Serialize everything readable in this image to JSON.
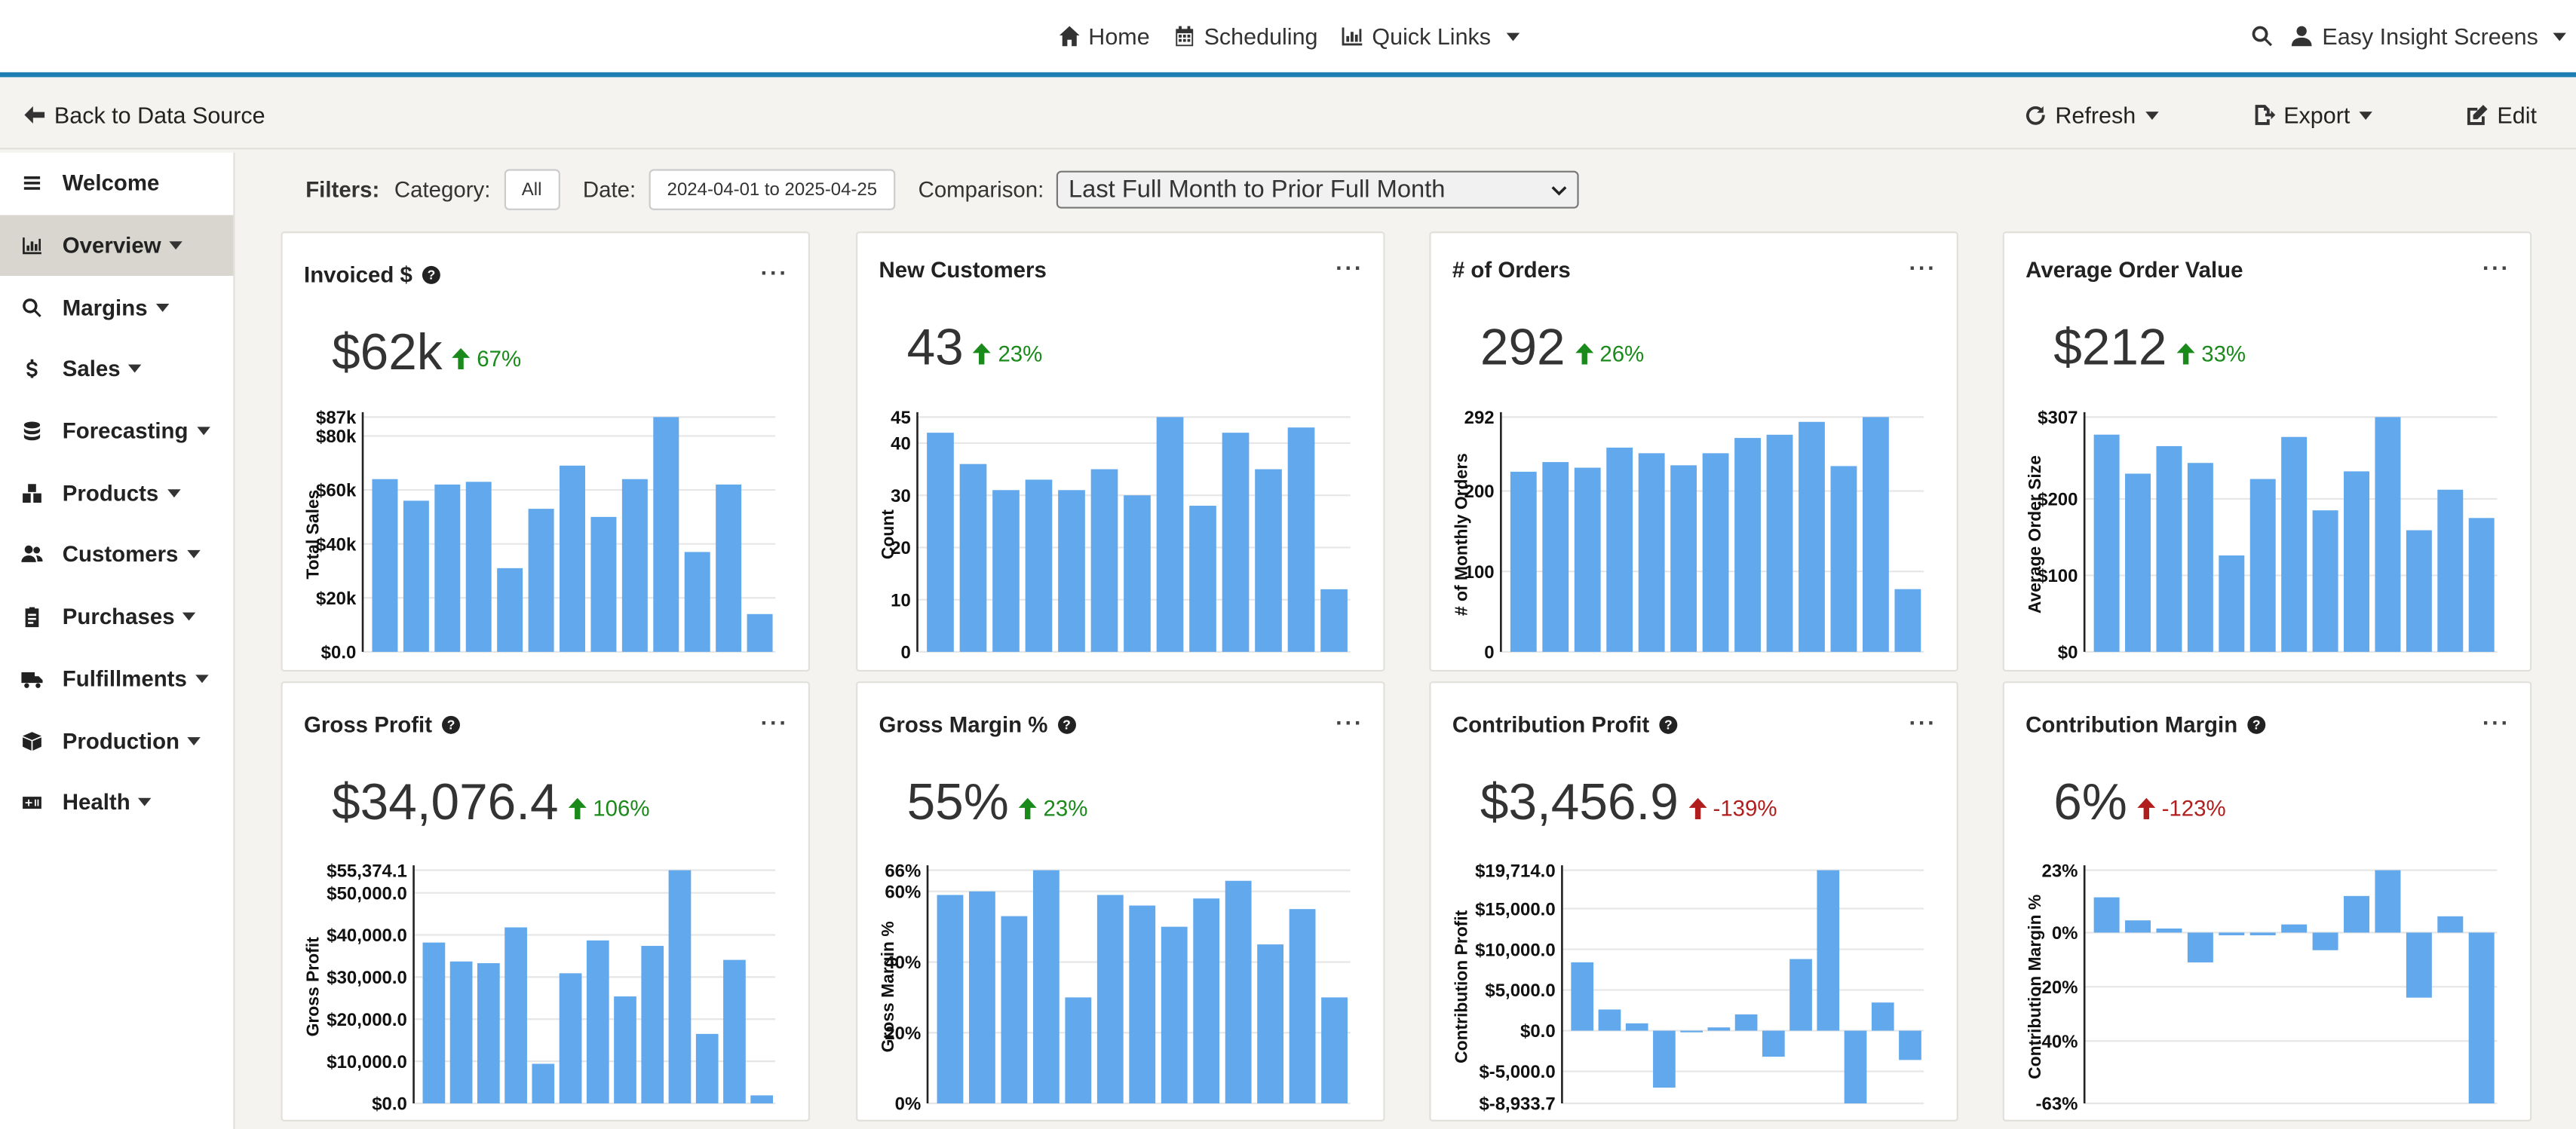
{
  "nav": {
    "home": "Home",
    "scheduling": "Scheduling",
    "quick_links": "Quick Links",
    "user": "Easy Insight Screens"
  },
  "actions": {
    "back": "Back to Data Source",
    "refresh": "Refresh",
    "export": "Export",
    "edit": "Edit"
  },
  "sidebar": [
    {
      "label": "Welcome",
      "icon": "bars-icon",
      "caret": false
    },
    {
      "label": "Overview",
      "icon": "chart-icon",
      "caret": true
    },
    {
      "label": "Margins",
      "icon": "search-icon",
      "caret": true
    },
    {
      "label": "Sales",
      "icon": "dollar-icon",
      "caret": true
    },
    {
      "label": "Forecasting",
      "icon": "database-icon",
      "caret": true
    },
    {
      "label": "Products",
      "icon": "boxes-icon",
      "caret": true
    },
    {
      "label": "Customers",
      "icon": "users-icon",
      "caret": true
    },
    {
      "label": "Purchases",
      "icon": "clipboard-icon",
      "caret": true
    },
    {
      "label": "Fulfillments",
      "icon": "truck-icon",
      "caret": true
    },
    {
      "label": "Production",
      "icon": "package-icon",
      "caret": true
    },
    {
      "label": "Health",
      "icon": "health-icon",
      "caret": true
    }
  ],
  "filters": {
    "label": "Filters:",
    "category_label": "Category:",
    "category_value": "All",
    "date_label": "Date:",
    "date_value": "2024-04-01 to 2025-04-25",
    "comparison_label": "Comparison:",
    "comparison_value": "Last Full Month to Prior Full Month"
  },
  "colors": {
    "bar": "#62a8ec",
    "up": "#1a8a1a",
    "down": "#b01e1e",
    "accent": "#1e7fb4"
  },
  "chart_data": [
    {
      "type": "bar",
      "title": "Invoiced $",
      "help": true,
      "kpi": "$62k",
      "change": "67%",
      "direction": "up",
      "ylabel": "Total Sales",
      "ylim": [
        0,
        87
      ],
      "values": [
        64,
        56,
        62,
        63,
        31,
        53,
        69,
        50,
        64,
        87,
        37,
        62,
        14
      ],
      "ticks": [
        {
          "v": 0,
          "t": "$0.0"
        },
        {
          "v": 20,
          "t": "$20k"
        },
        {
          "v": 40,
          "t": "$40k"
        },
        {
          "v": 60,
          "t": "$60k"
        },
        {
          "v": 80,
          "t": "$80k"
        },
        {
          "v": 87,
          "t": "$87k"
        }
      ]
    },
    {
      "type": "bar",
      "title": "New Customers",
      "help": false,
      "kpi": "43",
      "change": "23%",
      "direction": "up",
      "ylabel": "Count",
      "ylim": [
        0,
        45
      ],
      "values": [
        42,
        36,
        31,
        33,
        31,
        35,
        30,
        45,
        28,
        42,
        35,
        43,
        12
      ],
      "ticks": [
        {
          "v": 0,
          "t": "0"
        },
        {
          "v": 10,
          "t": "10"
        },
        {
          "v": 20,
          "t": "20"
        },
        {
          "v": 30,
          "t": "30"
        },
        {
          "v": 40,
          "t": "40"
        },
        {
          "v": 45,
          "t": "45"
        }
      ]
    },
    {
      "type": "bar",
      "title": "# of Orders",
      "help": false,
      "kpi": "292",
      "change": "26%",
      "direction": "up",
      "ylabel": "# of Monthly Orders",
      "ylim": [
        0,
        292
      ],
      "values": [
        224,
        236,
        229,
        254,
        247,
        232,
        247,
        266,
        270,
        286,
        231,
        292,
        78
      ],
      "ticks": [
        {
          "v": 0,
          "t": "0"
        },
        {
          "v": 100,
          "t": "100"
        },
        {
          "v": 200,
          "t": "200"
        },
        {
          "v": 292,
          "t": "292"
        }
      ]
    },
    {
      "type": "bar",
      "title": "Average Order Value",
      "help": false,
      "kpi": "$212",
      "change": "33%",
      "direction": "up",
      "ylabel": "Average Order Size",
      "ylim": [
        0,
        307
      ],
      "values": [
        284,
        233,
        269,
        247,
        126,
        226,
        281,
        185,
        236,
        307,
        159,
        212,
        175
      ],
      "ticks": [
        {
          "v": 0,
          "t": "$0"
        },
        {
          "v": 100,
          "t": "$100"
        },
        {
          "v": 200,
          "t": "$200"
        },
        {
          "v": 307,
          "t": "$307"
        }
      ]
    },
    {
      "type": "bar",
      "title": "Gross Profit",
      "help": true,
      "kpi": "$34,076.4",
      "change": "106%",
      "direction": "up",
      "ylabel": "Gross Profit",
      "ylim": [
        0,
        55374.1
      ],
      "values": [
        38200,
        33700,
        33300,
        41800,
        9400,
        30900,
        38700,
        25400,
        37400,
        55374.1,
        16500,
        34076.4,
        1900
      ],
      "ticks": [
        {
          "v": 0,
          "t": "$0.0"
        },
        {
          "v": 10000,
          "t": "$10,000.0"
        },
        {
          "v": 20000,
          "t": "$20,000.0"
        },
        {
          "v": 30000,
          "t": "$30,000.0"
        },
        {
          "v": 40000,
          "t": "$40,000.0"
        },
        {
          "v": 50000,
          "t": "$50,000.0"
        },
        {
          "v": 55374.1,
          "t": "$55,374.1"
        }
      ]
    },
    {
      "type": "bar",
      "title": "Gross Margin %",
      "help": true,
      "kpi": "55%",
      "change": "23%",
      "direction": "up",
      "ylabel": "Gross Margin %",
      "ylim": [
        0,
        66
      ],
      "values": [
        59,
        60,
        53,
        66,
        30,
        59,
        56,
        50,
        58,
        63,
        45,
        55,
        30
      ],
      "ticks": [
        {
          "v": 0,
          "t": "0%"
        },
        {
          "v": 20,
          "t": "20%"
        },
        {
          "v": 40,
          "t": "40%"
        },
        {
          "v": 60,
          "t": "60%"
        },
        {
          "v": 66,
          "t": "66%"
        }
      ]
    },
    {
      "type": "bar",
      "title": "Contribution Profit",
      "help": true,
      "kpi": "$3,456.9",
      "change": "-139%",
      "direction": "down",
      "ylabel": "Contribution Profit",
      "ylim": [
        -8933.7,
        19714
      ],
      "values": [
        8400,
        2600,
        900,
        -7000,
        -200,
        400,
        2000,
        -3200,
        8800,
        19714,
        -8933.7,
        3456.9,
        -3600
      ],
      "ticks": [
        {
          "v": -8933.7,
          "t": "$-8,933.7"
        },
        {
          "v": -5000,
          "t": "$-5,000.0"
        },
        {
          "v": 0,
          "t": "$0.0"
        },
        {
          "v": 5000,
          "t": "$5,000.0"
        },
        {
          "v": 10000,
          "t": "$10,000.0"
        },
        {
          "v": 15000,
          "t": "$15,000.0"
        },
        {
          "v": 19714,
          "t": "$19,714.0"
        }
      ]
    },
    {
      "type": "bar",
      "title": "Contribution Margin",
      "help": true,
      "kpi": "6%",
      "change": "-123%",
      "direction": "down",
      "ylabel": "Contribution Margin %",
      "ylim": [
        -63,
        23
      ],
      "values": [
        13,
        4.5,
        1.5,
        -11,
        -1,
        -1,
        3,
        -6.5,
        13.5,
        23,
        -24,
        6,
        -63
      ],
      "ticks": [
        {
          "v": -63,
          "t": "-63%"
        },
        {
          "v": -40,
          "t": "-40%"
        },
        {
          "v": -20,
          "t": "-20%"
        },
        {
          "v": 0,
          "t": "0%"
        },
        {
          "v": 23,
          "t": "23%"
        }
      ]
    }
  ]
}
